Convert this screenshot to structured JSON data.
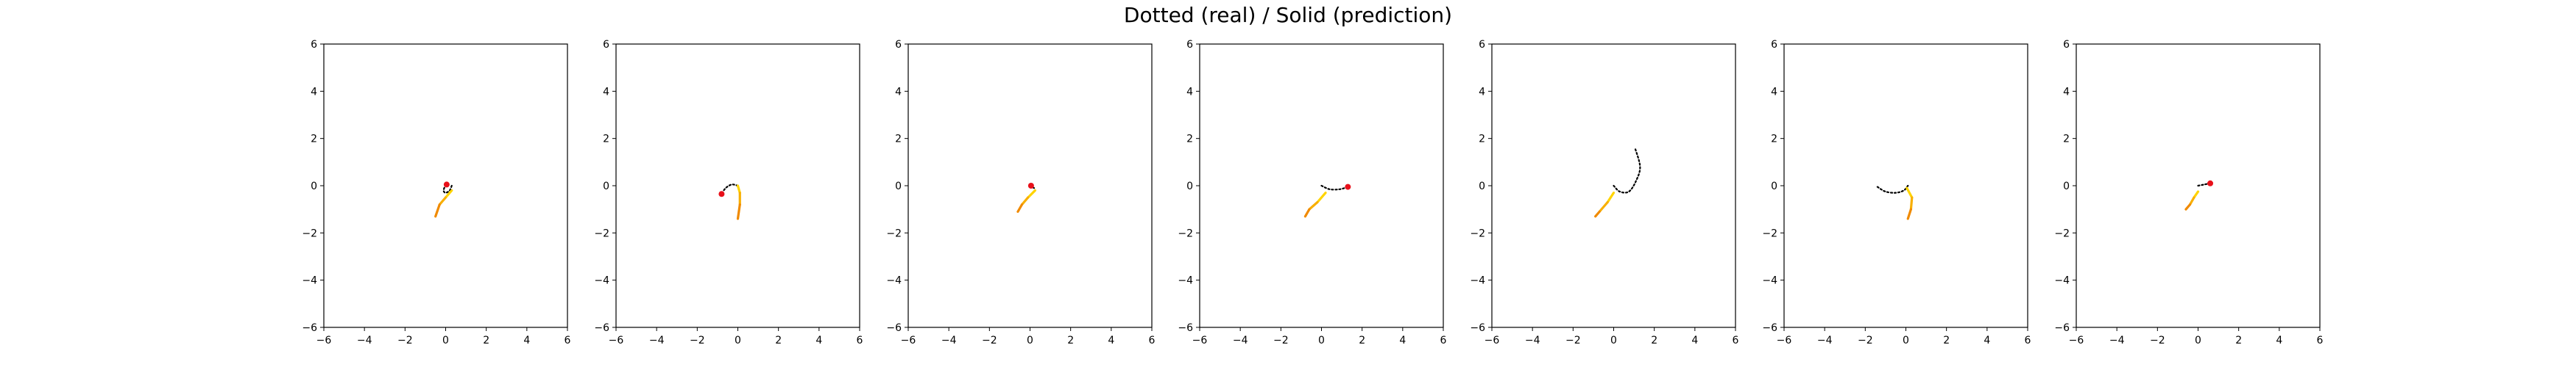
{
  "title": "Dotted (real) / Solid (prediction)",
  "chart_data": [
    {
      "type": "line",
      "xlim": [
        -6,
        6
      ],
      "ylim": [
        -6,
        6
      ],
      "xticks": [
        -6,
        -4,
        -2,
        0,
        2,
        4,
        6
      ],
      "yticks": [
        -6,
        -4,
        -2,
        0,
        2,
        4,
        6
      ],
      "real": [
        [
          0.3,
          0.0
        ],
        [
          0.2,
          -0.2
        ],
        [
          0.0,
          -0.3
        ],
        [
          -0.1,
          -0.2
        ],
        [
          0.0,
          0.05
        ]
      ],
      "prediction": [
        [
          0.3,
          -0.2
        ],
        [
          0.0,
          -0.5
        ],
        [
          -0.3,
          -0.8
        ],
        [
          -0.5,
          -1.3
        ]
      ],
      "marker": [
        0.05,
        0.05
      ]
    },
    {
      "type": "line",
      "xlim": [
        -6,
        6
      ],
      "ylim": [
        -6,
        6
      ],
      "xticks": [
        -6,
        -4,
        -2,
        0,
        2,
        4,
        6
      ],
      "yticks": [
        -6,
        -4,
        -2,
        0,
        2,
        4,
        6
      ],
      "real": [
        [
          0.0,
          0.0
        ],
        [
          -0.3,
          0.05
        ],
        [
          -0.6,
          -0.1
        ],
        [
          -0.8,
          -0.35
        ]
      ],
      "prediction": [
        [
          0.0,
          0.0
        ],
        [
          0.1,
          -0.3
        ],
        [
          0.1,
          -0.8
        ],
        [
          0.0,
          -1.4
        ]
      ],
      "marker": [
        -0.8,
        -0.35
      ]
    },
    {
      "type": "line",
      "xlim": [
        -6,
        6
      ],
      "ylim": [
        -6,
        6
      ],
      "xticks": [
        -6,
        -4,
        -2,
        0,
        2,
        4,
        6
      ],
      "yticks": [
        -6,
        -4,
        -2,
        0,
        2,
        4,
        6
      ],
      "real": [
        [
          0.0,
          0.0
        ],
        [
          0.1,
          -0.05
        ],
        [
          0.2,
          -0.1
        ]
      ],
      "prediction": [
        [
          0.25,
          -0.2
        ],
        [
          -0.1,
          -0.5
        ],
        [
          -0.4,
          -0.8
        ],
        [
          -0.6,
          -1.1
        ]
      ],
      "marker": [
        0.05,
        0.0
      ]
    },
    {
      "type": "line",
      "xlim": [
        -6,
        6
      ],
      "ylim": [
        -6,
        6
      ],
      "xticks": [
        -6,
        -4,
        -2,
        0,
        2,
        4,
        6
      ],
      "yticks": [
        -6,
        -4,
        -2,
        0,
        2,
        4,
        6
      ],
      "real": [
        [
          0.0,
          0.0
        ],
        [
          0.4,
          -0.15
        ],
        [
          0.9,
          -0.15
        ],
        [
          1.3,
          -0.05
        ]
      ],
      "prediction": [
        [
          0.2,
          -0.3
        ],
        [
          -0.2,
          -0.7
        ],
        [
          -0.6,
          -1.0
        ],
        [
          -0.8,
          -1.3
        ]
      ],
      "marker": [
        1.3,
        -0.05
      ]
    },
    {
      "type": "line",
      "xlim": [
        -6,
        6
      ],
      "ylim": [
        -6,
        6
      ],
      "xticks": [
        -6,
        -4,
        -2,
        0,
        2,
        4,
        6
      ],
      "yticks": [
        -6,
        -4,
        -2,
        0,
        2,
        4,
        6
      ],
      "real": [
        [
          0.0,
          0.0
        ],
        [
          0.3,
          -0.25
        ],
        [
          0.75,
          -0.25
        ],
        [
          1.1,
          0.2
        ],
        [
          1.3,
          0.8
        ],
        [
          1.05,
          1.6
        ]
      ],
      "prediction": [
        [
          0.0,
          -0.3
        ],
        [
          -0.3,
          -0.7
        ],
        [
          -0.7,
          -1.1
        ],
        [
          -0.9,
          -1.3
        ]
      ],
      "marker": null
    },
    {
      "type": "line",
      "xlim": [
        -6,
        6
      ],
      "ylim": [
        -6,
        6
      ],
      "xticks": [
        -6,
        -4,
        -2,
        0,
        2,
        4,
        6
      ],
      "yticks": [
        -6,
        -4,
        -2,
        0,
        2,
        4,
        6
      ],
      "real": [
        [
          -1.4,
          -0.05
        ],
        [
          -1.0,
          -0.25
        ],
        [
          -0.5,
          -0.3
        ],
        [
          -0.1,
          -0.2
        ],
        [
          0.1,
          0.0
        ]
      ],
      "prediction": [
        [
          0.05,
          -0.1
        ],
        [
          0.3,
          -0.5
        ],
        [
          0.25,
          -1.0
        ],
        [
          0.1,
          -1.4
        ]
      ],
      "marker": null
    },
    {
      "type": "line",
      "xlim": [
        -6,
        6
      ],
      "ylim": [
        -6,
        6
      ],
      "xticks": [
        -6,
        -4,
        -2,
        0,
        2,
        4,
        6
      ],
      "yticks": [
        -6,
        -4,
        -2,
        0,
        2,
        4,
        6
      ],
      "real": [
        [
          0.0,
          0.0
        ],
        [
          0.3,
          0.05
        ],
        [
          0.6,
          0.1
        ]
      ],
      "prediction": [
        [
          0.0,
          -0.25
        ],
        [
          -0.2,
          -0.5
        ],
        [
          -0.4,
          -0.8
        ],
        [
          -0.6,
          -1.0
        ]
      ],
      "marker": [
        0.6,
        0.1
      ]
    }
  ]
}
